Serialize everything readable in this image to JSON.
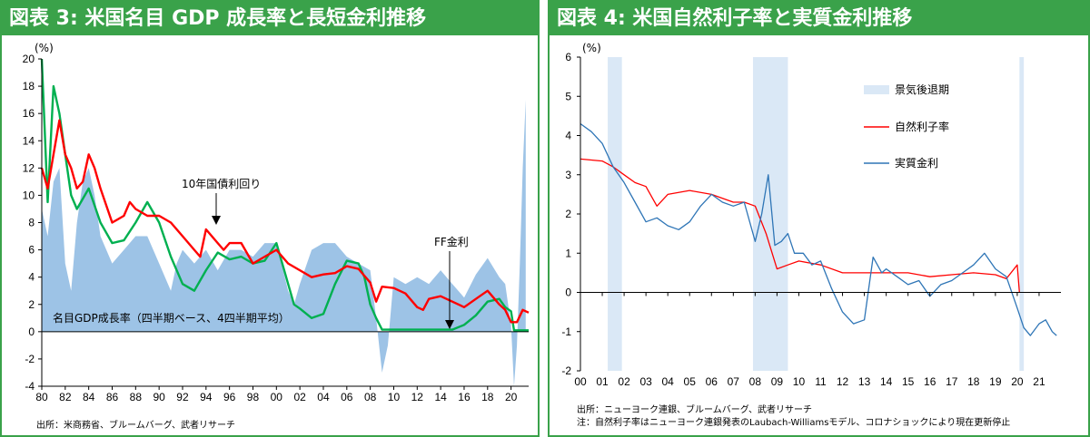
{
  "left": {
    "title": "図表 3: 米国名目 GDP 成長率と長短金利推移",
    "source": "出所：米商務省、ブルームバーグ、武者リサーチ",
    "unit_label": "(%)",
    "annotations": {
      "gdp": "名目GDP成長率（四半期ベース、4四半期平均）",
      "ten_year": "10年国債利回り",
      "ff": "FF金利"
    },
    "colors": {
      "gdp": "#9dc3e6",
      "ten_year": "#ff0000",
      "ff": "#00b050"
    },
    "chart_data": {
      "type": "area",
      "ylim": [
        -4,
        20
      ],
      "yticks": [
        "-4",
        "-2",
        "0",
        "2",
        "4",
        "6",
        "8",
        "10",
        "12",
        "14",
        "16",
        "18",
        "20"
      ],
      "xlim": [
        1980,
        2021.5
      ],
      "xticks": [
        "80",
        "82",
        "84",
        "86",
        "88",
        "90",
        "92",
        "94",
        "96",
        "98",
        "00",
        "02",
        "04",
        "06",
        "08",
        "10",
        "12",
        "14",
        "16",
        "18",
        "20"
      ],
      "series": [
        {
          "name": "名目GDP成長率（四半期ベース、4四半期平均）",
          "type": "area",
          "x": [
            1980,
            1980.5,
            1981,
            1981.5,
            1982,
            1982.5,
            1983,
            1983.5,
            1984,
            1984.5,
            1985,
            1986,
            1987,
            1988,
            1989,
            1990,
            1991,
            1991.5,
            1992,
            1993,
            1994,
            1995,
            1996,
            1997,
            1998,
            1999,
            2000,
            2001,
            2001.5,
            2002,
            2003,
            2004,
            2005,
            2006,
            2007,
            2008,
            2008.5,
            2009,
            2009.5,
            2010,
            2011,
            2012,
            2013,
            2014,
            2015,
            2016,
            2017,
            2018,
            2019,
            2019.5,
            2020,
            2020.25,
            2020.5,
            2020.75,
            2021,
            2021.25
          ],
          "y": [
            9,
            7,
            11,
            12,
            5,
            3,
            8,
            11,
            12,
            10,
            7,
            5,
            6,
            7,
            7,
            5,
            3,
            5,
            6,
            5,
            6,
            4.5,
            6,
            6,
            5.5,
            6.5,
            6.5,
            3,
            2,
            3.5,
            6,
            6.5,
            6.5,
            5.5,
            5,
            4.5,
            1,
            -3,
            -1,
            4,
            3.5,
            4,
            3.5,
            4.5,
            3.5,
            2.5,
            4.2,
            5.4,
            4,
            3.5,
            0.5,
            -4,
            -1,
            5,
            12,
            17
          ]
        },
        {
          "name": "10年国債利回り",
          "type": "line",
          "x": [
            1980,
            1980.5,
            1981,
            1981.5,
            1982,
            1982.5,
            1983,
            1983.5,
            1984,
            1984.5,
            1985,
            1986,
            1987,
            1987.5,
            1988,
            1989,
            1990,
            1991,
            1992,
            1993,
            1993.5,
            1994,
            1995,
            1995.5,
            1996,
            1997,
            1998,
            1999,
            2000,
            2001,
            2002,
            2003,
            2004,
            2005,
            2006,
            2007,
            2008,
            2008.5,
            2009,
            2010,
            2011,
            2012,
            2012.5,
            2013,
            2014,
            2015,
            2016,
            2017,
            2018,
            2019,
            2019.5,
            2020,
            2020.5,
            2021,
            2021.5
          ],
          "y": [
            12,
            10.5,
            13,
            15.5,
            13,
            12,
            10.5,
            11,
            13,
            12,
            10.5,
            8,
            8.5,
            9.5,
            9,
            8.5,
            8.5,
            8,
            7,
            6,
            5.5,
            7.5,
            6.5,
            6,
            6.5,
            6.5,
            5,
            5.5,
            6,
            5,
            4.5,
            4,
            4.2,
            4.3,
            4.8,
            4.6,
            3.6,
            2.2,
            3.3,
            3.2,
            2.8,
            1.8,
            1.6,
            2.4,
            2.6,
            2.2,
            1.8,
            2.4,
            3,
            2,
            1.6,
            0.7,
            0.7,
            1.6,
            1.4
          ]
        },
        {
          "name": "FF金利",
          "type": "line",
          "x": [
            1980,
            1980.5,
            1981,
            1981.5,
            1982,
            1982.5,
            1983,
            1984,
            1985,
            1986,
            1987,
            1988,
            1989,
            1990,
            1991,
            1992,
            1993,
            1994,
            1995,
            1996,
            1997,
            1998,
            1999,
            2000,
            2001,
            2001.5,
            2002,
            2003,
            2004,
            2005,
            2006,
            2007,
            2007.5,
            2008,
            2008.5,
            2009,
            2015,
            2016,
            2017,
            2018,
            2019,
            2019.5,
            2020,
            2020.25,
            2021,
            2021.5
          ],
          "y": [
            20,
            9.5,
            18,
            16,
            13,
            10,
            9,
            10.5,
            8,
            6.5,
            6.7,
            8,
            9.5,
            8,
            5.5,
            3.5,
            3,
            4.5,
            5.8,
            5.3,
            5.5,
            5,
            5.2,
            6.5,
            3.5,
            2,
            1.7,
            1,
            1.3,
            3.5,
            5.2,
            5,
            4,
            2,
            1,
            0.15,
            0.15,
            0.5,
            1.2,
            2.2,
            2.4,
            1.8,
            1.5,
            0.1,
            0.1,
            0.1
          ]
        }
      ]
    }
  },
  "right": {
    "title": "図表 4: 米国自然利子率と実質金利推移",
    "unit_label": "(%)",
    "source_line1": "出所：ニューヨーク連銀、ブルームバーグ、武者リサーチ",
    "source_line2": "注：自然利子率はニューヨーク連銀発表のLaubach-Williamsモデル、コロナショックにより現在更新停止",
    "colors": {
      "recession": "#dae8f6",
      "natural": "#ff0000",
      "real": "#2e75b6"
    },
    "chart_data": {
      "type": "line",
      "ylim": [
        -2,
        6
      ],
      "yticks": [
        "-2",
        "-1",
        "0",
        "1",
        "2",
        "3",
        "4",
        "5",
        "6"
      ],
      "xlim": [
        2000,
        2022
      ],
      "xticks": [
        "00",
        "01",
        "02",
        "03",
        "04",
        "05",
        "06",
        "07",
        "08",
        "09",
        "10",
        "11",
        "12",
        "13",
        "14",
        "15",
        "16",
        "17",
        "18",
        "19",
        "20",
        "21"
      ],
      "legend": [
        "景気後退期",
        "自然利子率",
        "実質金利"
      ],
      "legend_position": "right",
      "recessions": [
        [
          2001.25,
          2001.9
        ],
        [
          2007.9,
          2009.5
        ],
        [
          2020.1,
          2020.3
        ]
      ],
      "series": [
        {
          "name": "自然利子率",
          "x": [
            2000,
            2001,
            2001.5,
            2002,
            2002.5,
            2003,
            2003.5,
            2004,
            2005,
            2006,
            2007,
            2007.5,
            2008,
            2008.5,
            2009,
            2009.5,
            2010,
            2011,
            2012,
            2013,
            2014,
            2015,
            2016,
            2017,
            2018,
            2019,
            2019.5,
            2020,
            2020.1
          ],
          "y": [
            3.4,
            3.35,
            3.2,
            3.0,
            2.8,
            2.7,
            2.2,
            2.5,
            2.6,
            2.5,
            2.3,
            2.3,
            2.2,
            1.5,
            0.6,
            0.7,
            0.8,
            0.7,
            0.5,
            0.5,
            0.5,
            0.5,
            0.4,
            0.45,
            0.5,
            0.45,
            0.35,
            0.7,
            0.0
          ]
        },
        {
          "name": "実質金利",
          "x": [
            2000,
            2000.5,
            2001,
            2001.5,
            2002,
            2002.5,
            2003,
            2003.5,
            2004,
            2004.5,
            2005,
            2005.5,
            2006,
            2006.5,
            2007,
            2007.5,
            2008,
            2008.3,
            2008.6,
            2008.9,
            2009.2,
            2009.5,
            2009.8,
            2010.2,
            2010.6,
            2011,
            2011.5,
            2012,
            2012.5,
            2013,
            2013.4,
            2013.8,
            2014,
            2014.5,
            2015,
            2015.5,
            2016,
            2016.5,
            2017,
            2017.5,
            2018,
            2018.5,
            2019,
            2019.5,
            2020,
            2020.3,
            2020.6,
            2021,
            2021.3,
            2021.6,
            2021.8
          ],
          "y": [
            4.3,
            4.1,
            3.8,
            3.2,
            2.8,
            2.3,
            1.8,
            1.9,
            1.7,
            1.6,
            1.8,
            2.2,
            2.5,
            2.3,
            2.2,
            2.3,
            1.3,
            2.0,
            3.0,
            1.2,
            1.3,
            1.5,
            1.0,
            1.0,
            0.7,
            0.8,
            0.1,
            -0.5,
            -0.8,
            -0.7,
            0.9,
            0.5,
            0.6,
            0.4,
            0.2,
            0.3,
            -0.1,
            0.2,
            0.3,
            0.5,
            0.7,
            1.0,
            0.6,
            0.4,
            -0.4,
            -0.9,
            -1.1,
            -0.8,
            -0.7,
            -1.0,
            -1.1
          ]
        }
      ]
    }
  }
}
